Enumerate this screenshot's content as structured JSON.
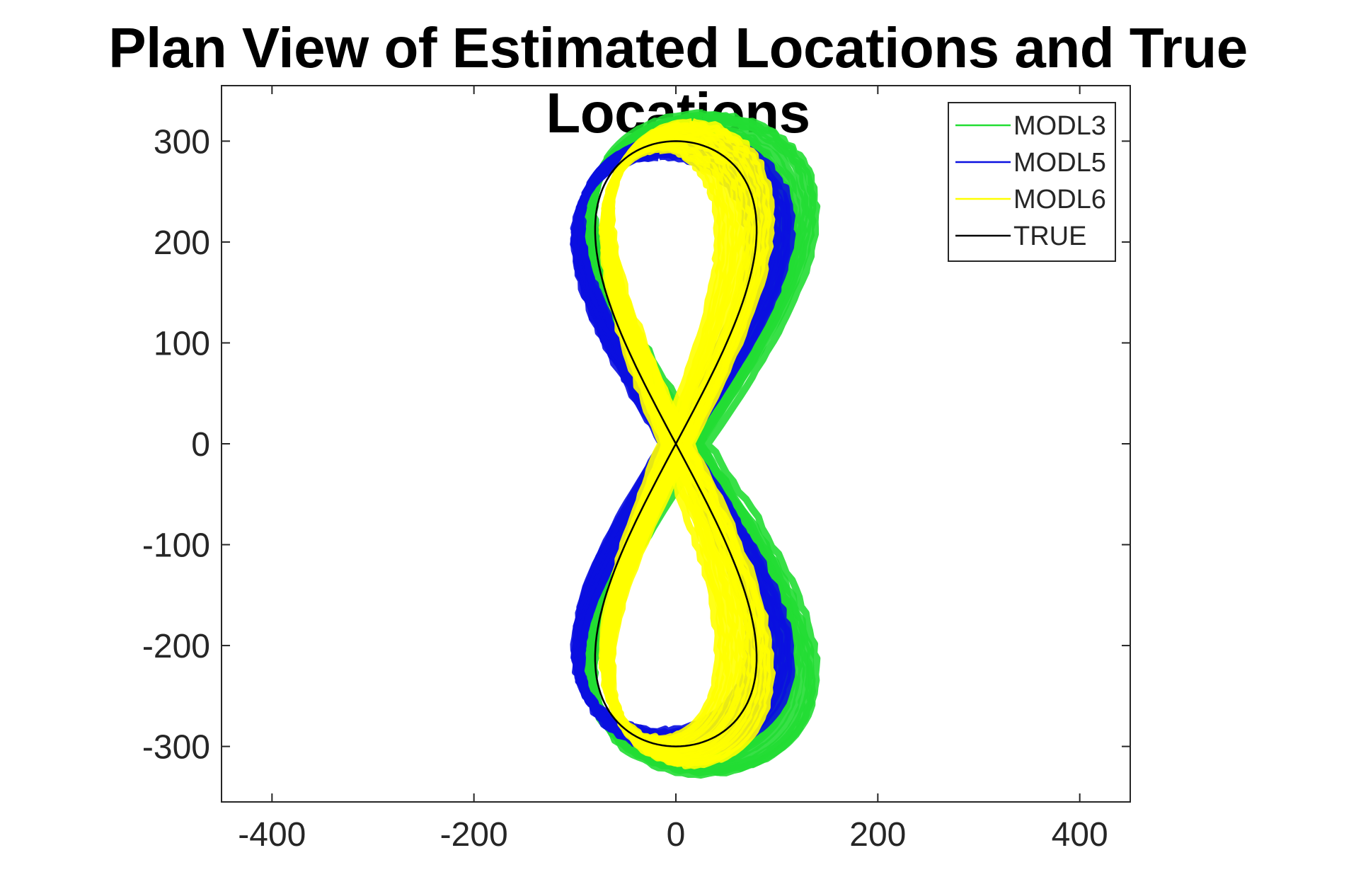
{
  "chart_data": {
    "type": "line",
    "title": "Plan View of Estimated Locations and True Locations",
    "xlabel": "",
    "ylabel": "",
    "xlim": [
      -450,
      450
    ],
    "ylim": [
      -355,
      355
    ],
    "xticks": [
      -400,
      -200,
      0,
      200,
      400
    ],
    "yticks": [
      -300,
      -200,
      -100,
      0,
      100,
      200,
      300
    ],
    "xtick_labels": [
      "-400",
      "-200",
      "0",
      "200",
      "400"
    ],
    "ytick_labels": [
      "-300",
      "-200",
      "-100",
      "0",
      "100",
      "200",
      "300"
    ],
    "grid": false,
    "legend_position": "top-right",
    "series": [
      {
        "name": "MODL3",
        "color": "#22dd33",
        "x_amplitude": 100,
        "y_amplitude": 315,
        "x_offset": 15,
        "band_halfwidth": 20
      },
      {
        "name": "MODL5",
        "color": "#0a10e0",
        "x_amplitude": 95,
        "y_amplitude": 295,
        "x_offset": -2,
        "band_halfwidth": 18
      },
      {
        "name": "MODL6",
        "color": "#ffff00",
        "x_amplitude": 68,
        "y_amplitude": 305,
        "x_offset": 0,
        "band_halfwidth": 22
      },
      {
        "name": "TRUE",
        "color": "#000000",
        "x_amplitude": 80,
        "y_amplitude": 300,
        "x_offset": 0,
        "band_halfwidth": 0
      }
    ]
  }
}
